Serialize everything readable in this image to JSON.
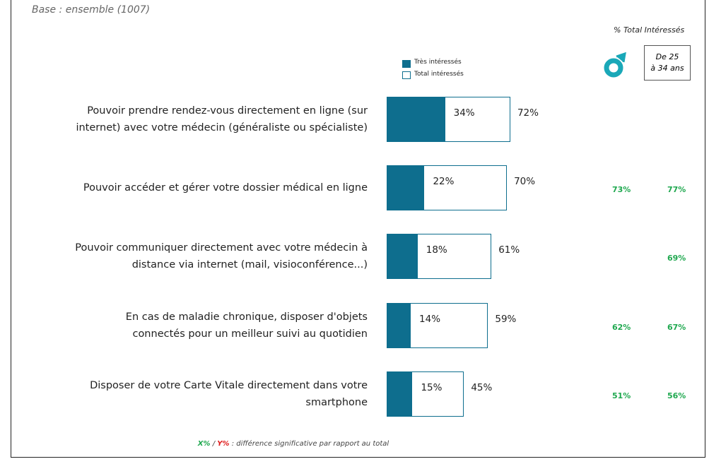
{
  "base": "Base : ensemble (1007)",
  "chart_data": {
    "type": "bar",
    "orientation": "horizontal",
    "overlap": true,
    "categories": [
      "Pouvoir prendre rendez-vous directement en ligne (sur\ninternet) avec votre médecin (généraliste ou spécialiste)",
      "Pouvoir accéder et gérer votre dossier médical en ligne",
      "Pouvoir communiquer directement avec votre médecin à\ndistance via internet (mail, visioconférence...)",
      "En cas de maladie chronique, disposer d'objets\nconnectés pour un meilleur suivi au quotidien",
      "Disposer de votre Carte Vitale directement dans votre\nsmartphone"
    ],
    "series": [
      {
        "name": "Très intéressés",
        "color": "#0e6e8e",
        "values": [
          34,
          22,
          18,
          14,
          15
        ],
        "value_labels": [
          "34%",
          "22%",
          "18%",
          "14%",
          "15%"
        ]
      },
      {
        "name": "Total intéressés",
        "color": "#ffffff",
        "values": [
          72,
          70,
          61,
          59,
          45
        ],
        "value_labels": [
          "72%",
          "70%",
          "61%",
          "59%",
          "45%"
        ]
      }
    ],
    "subgroups_title": "% Total Intéressés",
    "subgroups": [
      {
        "color": "#1fa84f",
        "values": [
          null,
          73,
          null,
          62,
          51
        ],
        "value_labels": [
          null,
          "73%",
          null,
          "62%",
          "51%"
        ]
      },
      {
        "name": "De 25\nà 34 ans",
        "color": "#1fa84f",
        "values": [
          null,
          77,
          69,
          67,
          56
        ],
        "value_labels": [
          null,
          "77%",
          "69%",
          "67%",
          "56%"
        ]
      }
    ],
    "note": {
      "x": "X%",
      "separator": " / ",
      "y": "Y%",
      "text": " : différence significative par rapport au total"
    }
  }
}
